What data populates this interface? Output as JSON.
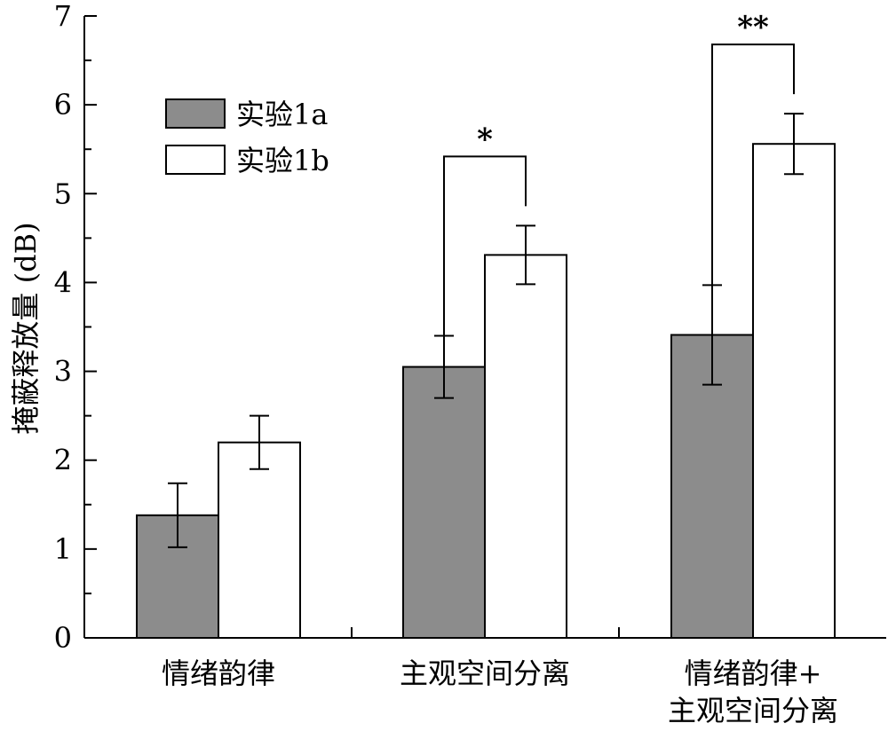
{
  "chart_data": {
    "type": "bar",
    "title": "",
    "xlabel": "",
    "ylabel": "掩蔽释放量 (dB)",
    "ylim": [
      0,
      7
    ],
    "yticks": [
      0,
      1,
      2,
      3,
      4,
      5,
      6,
      7
    ],
    "categories": [
      [
        "情绪韵律"
      ],
      [
        "主观空间分离"
      ],
      [
        "情绪韵律+",
        "主观空间分离"
      ]
    ],
    "series": [
      {
        "name": "实验1a",
        "color": "#8c8c8c",
        "values": [
          1.38,
          3.05,
          3.41
        ],
        "errors": [
          0.36,
          0.35,
          0.56
        ]
      },
      {
        "name": "实验1b",
        "color": "#ffffff",
        "values": [
          2.2,
          4.31,
          5.56
        ],
        "errors": [
          0.3,
          0.33,
          0.34
        ]
      }
    ],
    "significance": [
      {
        "category_index": 1,
        "label": "*"
      },
      {
        "category_index": 2,
        "label": "**"
      }
    ],
    "legend_position": "top-left",
    "grid": false
  }
}
